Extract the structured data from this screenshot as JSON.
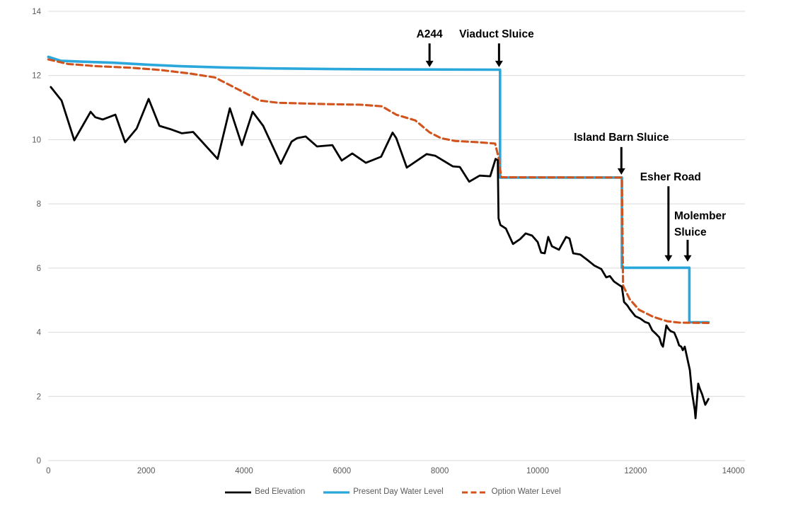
{
  "chart_data": {
    "type": "line",
    "title": "",
    "xlabel": "",
    "ylabel": "",
    "xlim": [
      0,
      14000
    ],
    "ylim": [
      0,
      14
    ],
    "x_ticks": [
      0,
      2000,
      4000,
      6000,
      8000,
      10000,
      12000,
      14000
    ],
    "y_ticks": [
      0,
      2,
      4,
      6,
      8,
      10,
      12,
      14
    ],
    "grid": "horizontal-only",
    "grid_color": "#d9d9d9",
    "tick_label_color": "#595959",
    "background": "#ffffff",
    "legend_position": "bottom-center",
    "series": [
      {
        "name": "Bed Elevation",
        "color": "#000000",
        "width": 2.8,
        "dash": null,
        "points": [
          [
            50,
            11.64
          ],
          [
            270,
            11.22
          ],
          [
            530,
            9.98
          ],
          [
            865,
            10.87
          ],
          [
            960,
            10.7
          ],
          [
            1110,
            10.63
          ],
          [
            1370,
            10.78
          ],
          [
            1570,
            9.92
          ],
          [
            1805,
            10.35
          ],
          [
            2050,
            11.27
          ],
          [
            2270,
            10.43
          ],
          [
            2510,
            10.32
          ],
          [
            2730,
            10.2
          ],
          [
            2960,
            10.24
          ],
          [
            3460,
            9.4
          ],
          [
            3710,
            10.98
          ],
          [
            3955,
            9.83
          ],
          [
            4175,
            10.87
          ],
          [
            4390,
            10.43
          ],
          [
            4750,
            9.25
          ],
          [
            4970,
            9.94
          ],
          [
            5085,
            10.05
          ],
          [
            5260,
            10.1
          ],
          [
            5490,
            9.79
          ],
          [
            5805,
            9.83
          ],
          [
            5995,
            9.35
          ],
          [
            6210,
            9.57
          ],
          [
            6490,
            9.28
          ],
          [
            6800,
            9.47
          ],
          [
            7035,
            10.22
          ],
          [
            7110,
            10.05
          ],
          [
            7325,
            9.13
          ],
          [
            7730,
            9.55
          ],
          [
            7905,
            9.5
          ],
          [
            8265,
            9.17
          ],
          [
            8410,
            9.15
          ],
          [
            8600,
            8.69
          ],
          [
            8815,
            8.88
          ],
          [
            9030,
            8.86
          ],
          [
            9140,
            9.4
          ],
          [
            9185,
            9.36
          ],
          [
            9200,
            7.55
          ],
          [
            9240,
            7.34
          ],
          [
            9350,
            7.23
          ],
          [
            9495,
            6.75
          ],
          [
            9640,
            6.9
          ],
          [
            9755,
            7.08
          ],
          [
            9885,
            7.01
          ],
          [
            10000,
            6.81
          ],
          [
            10070,
            6.48
          ],
          [
            10145,
            6.46
          ],
          [
            10215,
            6.97
          ],
          [
            10290,
            6.68
          ],
          [
            10435,
            6.57
          ],
          [
            10580,
            6.97
          ],
          [
            10650,
            6.92
          ],
          [
            10725,
            6.46
          ],
          [
            10870,
            6.42
          ],
          [
            11010,
            6.26
          ],
          [
            11155,
            6.08
          ],
          [
            11300,
            5.97
          ],
          [
            11400,
            5.71
          ],
          [
            11475,
            5.75
          ],
          [
            11560,
            5.58
          ],
          [
            11665,
            5.47
          ],
          [
            11720,
            5.42
          ],
          [
            11765,
            4.94
          ],
          [
            11835,
            4.83
          ],
          [
            11880,
            4.72
          ],
          [
            11995,
            4.5
          ],
          [
            12095,
            4.43
          ],
          [
            12195,
            4.32
          ],
          [
            12270,
            4.28
          ],
          [
            12340,
            4.06
          ],
          [
            12415,
            3.95
          ],
          [
            12485,
            3.84
          ],
          [
            12530,
            3.62
          ],
          [
            12560,
            3.55
          ],
          [
            12630,
            4.21
          ],
          [
            12675,
            4.1
          ],
          [
            12720,
            4.03
          ],
          [
            12790,
            3.99
          ],
          [
            12850,
            3.77
          ],
          [
            12890,
            3.59
          ],
          [
            12935,
            3.55
          ],
          [
            12965,
            3.44
          ],
          [
            13005,
            3.55
          ],
          [
            13110,
            2.82
          ],
          [
            13150,
            2.16
          ],
          [
            13210,
            1.57
          ],
          [
            13225,
            1.32
          ],
          [
            13280,
            2.4
          ],
          [
            13310,
            2.25
          ],
          [
            13360,
            2.07
          ],
          [
            13425,
            1.74
          ],
          [
            13490,
            1.92
          ]
        ]
      },
      {
        "name": "Present Day Water Level",
        "color": "#2aa7db",
        "width": 3.6,
        "dash": null,
        "points": [
          [
            0,
            12.58
          ],
          [
            250,
            12.46
          ],
          [
            700,
            12.43
          ],
          [
            1300,
            12.4
          ],
          [
            2100,
            12.33
          ],
          [
            2700,
            12.29
          ],
          [
            3600,
            12.25
          ],
          [
            4600,
            12.22
          ],
          [
            5800,
            12.2
          ],
          [
            7000,
            12.19
          ],
          [
            9230,
            12.18
          ],
          [
            9230,
            8.82
          ],
          [
            11720,
            8.82
          ],
          [
            11720,
            6.01
          ],
          [
            13100,
            6.01
          ],
          [
            13100,
            4.31
          ],
          [
            13490,
            4.31
          ]
        ]
      },
      {
        "name": "Option Water Level",
        "color": "#d1541e",
        "width": 3.1,
        "dash": "8.5 5",
        "points": [
          [
            0,
            12.5
          ],
          [
            400,
            12.36
          ],
          [
            1000,
            12.29
          ],
          [
            1700,
            12.24
          ],
          [
            2300,
            12.17
          ],
          [
            2900,
            12.06
          ],
          [
            3400,
            11.94
          ],
          [
            3900,
            11.55
          ],
          [
            4320,
            11.22
          ],
          [
            4700,
            11.15
          ],
          [
            5660,
            11.11
          ],
          [
            6390,
            11.09
          ],
          [
            6820,
            11.04
          ],
          [
            7110,
            10.78
          ],
          [
            7500,
            10.6
          ],
          [
            7790,
            10.23
          ],
          [
            8020,
            10.05
          ],
          [
            8310,
            9.96
          ],
          [
            8800,
            9.92
          ],
          [
            9130,
            9.88
          ],
          [
            9200,
            9.45
          ],
          [
            9255,
            8.83
          ],
          [
            11720,
            8.82
          ],
          [
            11745,
            5.45
          ],
          [
            11880,
            5.03
          ],
          [
            12070,
            4.7
          ],
          [
            12360,
            4.48
          ],
          [
            12650,
            4.34
          ],
          [
            12900,
            4.3
          ],
          [
            13490,
            4.29
          ]
        ]
      }
    ],
    "annotations": [
      {
        "id": "a244",
        "lines": [
          "A244"
        ],
        "text_x": 7790,
        "text_anchor": "middle",
        "text_y": 13.18,
        "arrow_x": 7790,
        "arrow_from_y": 13.0,
        "arrow_to_y": 12.26
      },
      {
        "id": "viaduct",
        "lines": [
          "Viaduct Sluice"
        ],
        "text_x": 9160,
        "text_anchor": "middle",
        "text_y": 13.18,
        "arrow_x": 9210,
        "arrow_from_y": 13.0,
        "arrow_to_y": 12.26
      },
      {
        "id": "island-barn",
        "lines": [
          "Island Barn Sluice"
        ],
        "text_x": 11710,
        "text_anchor": "middle",
        "text_y": 9.96,
        "arrow_x": 11710,
        "arrow_from_y": 9.77,
        "arrow_to_y": 8.91
      },
      {
        "id": "esher-road",
        "lines": [
          "Esher Road"
        ],
        "text_x": 12715,
        "text_anchor": "middle",
        "text_y": 8.73,
        "arrow_x": 12672,
        "arrow_from_y": 8.55,
        "arrow_to_y": 6.2
      },
      {
        "id": "molember",
        "lines": [
          "Molember",
          "Sluice"
        ],
        "text_x": 12790,
        "text_anchor": "start",
        "text_y": 7.52,
        "arrow_x": 13064,
        "arrow_from_y": 6.88,
        "arrow_to_y": 6.2
      }
    ]
  }
}
